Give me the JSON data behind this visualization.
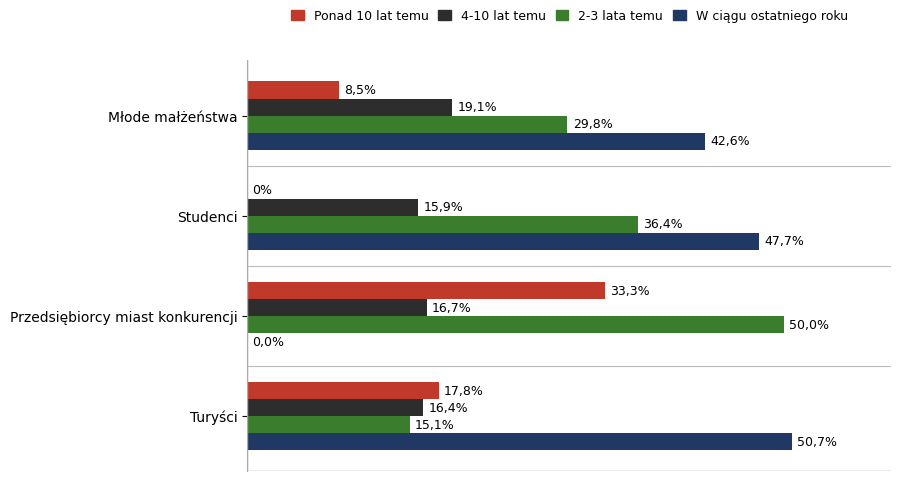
{
  "categories": [
    "Turyści",
    "Przedsiębiorcy miast konkurencji",
    "Studenci",
    "Młode małżeństwa"
  ],
  "series": [
    {
      "label": "Ponad 10 lat temu",
      "color": "#C0392B",
      "values": [
        17.8,
        33.3,
        0.0,
        8.5
      ]
    },
    {
      "label": "4-10 lat temu",
      "color": "#2D2D2D",
      "values": [
        16.4,
        16.7,
        15.9,
        19.1
      ]
    },
    {
      "label": "2-3 lata temu",
      "color": "#3A7D2C",
      "values": [
        15.1,
        50.0,
        36.4,
        29.8
      ]
    },
    {
      "label": "W ciągu ostatniego roku",
      "color": "#1F3864",
      "values": [
        50.7,
        0.0,
        47.7,
        42.6
      ]
    }
  ],
  "value_labels": [
    [
      "17,8%",
      "33,3%",
      "0%",
      "8,5%"
    ],
    [
      "16,4%",
      "16,7%",
      "15,9%",
      "19,1%"
    ],
    [
      "15,1%",
      "50,0%",
      "36,4%",
      "29,8%"
    ],
    [
      "50,7%",
      "0,0%",
      "47,7%",
      "42,6%"
    ]
  ],
  "zero_labels": [
    [
      false,
      false,
      true,
      false
    ],
    [
      false,
      false,
      false,
      false
    ],
    [
      false,
      false,
      false,
      false
    ],
    [
      false,
      true,
      false,
      false
    ]
  ],
  "xlim": [
    0,
    60
  ],
  "bar_height": 0.17,
  "background_color": "#FFFFFF",
  "legend_fontsize": 9,
  "label_fontsize": 9,
  "tick_fontsize": 10
}
